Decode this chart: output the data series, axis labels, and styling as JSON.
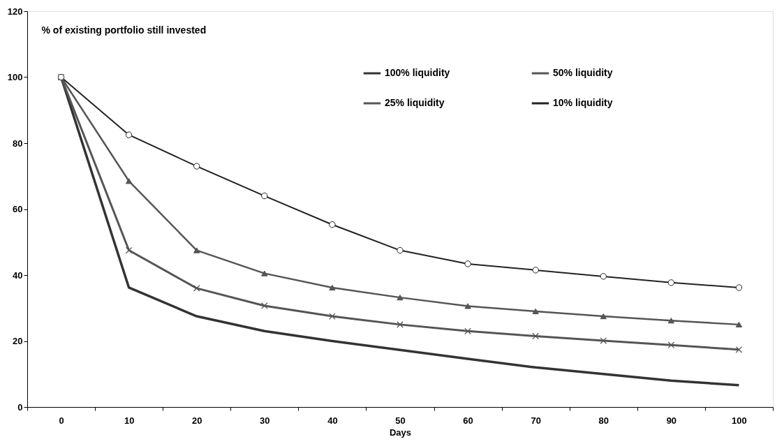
{
  "chart_data": {
    "type": "line",
    "ylabel": "% of existing portfolio still invested",
    "xlabel": "Days",
    "categories": [
      "0",
      "10",
      "20",
      "30",
      "40",
      "50",
      "60",
      "70",
      "80",
      "90",
      "100"
    ],
    "ylim": [
      0,
      120
    ],
    "yticks": [
      0,
      20,
      40,
      60,
      80,
      100,
      120
    ],
    "grid": false,
    "legend": "top right",
    "series": [
      {
        "name": "100% liquidity",
        "color": "#333333",
        "marker": "none",
        "values": [
          100,
          36.2,
          27.5,
          23,
          20,
          17.3,
          14.6,
          12,
          10,
          8,
          6.6
        ]
      },
      {
        "name": "50% liquidity",
        "color": "#555555",
        "marker": "cross",
        "values": [
          100,
          47.5,
          36,
          30.7,
          27.5,
          25,
          23,
          21.5,
          20.1,
          18.8,
          17.4
        ]
      },
      {
        "name": "25% liquidity",
        "color": "#555555",
        "marker": "triangle",
        "values": [
          100,
          68.5,
          47.5,
          40.5,
          36.2,
          33.2,
          30.6,
          29,
          27.5,
          26.2,
          25
        ]
      },
      {
        "name": "10% liquidity",
        "color": "#222222",
        "marker": "circle",
        "values": [
          100,
          82.5,
          73,
          64,
          55.3,
          47.5,
          43.4,
          41.5,
          39.6,
          37.7,
          36.2
        ]
      }
    ]
  }
}
